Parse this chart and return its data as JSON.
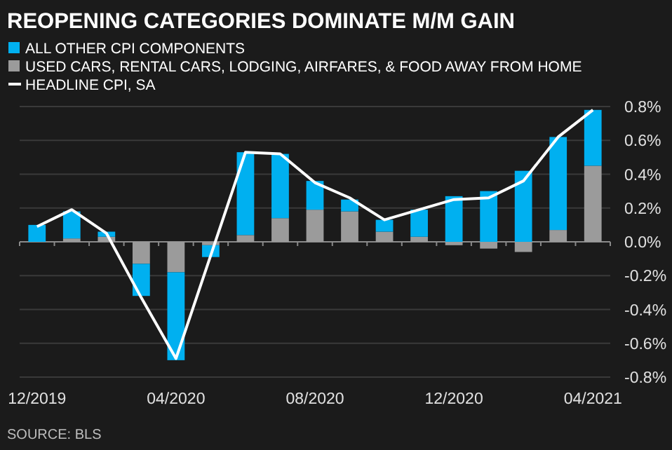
{
  "chart_data": {
    "type": "bar",
    "title": "REOPENING CATEGORIES DOMINATE M/M GAIN",
    "stacked": true,
    "categories": [
      "12/2019",
      null,
      null,
      null,
      "04/2020",
      null,
      null,
      null,
      "08/2020",
      null,
      null,
      null,
      "12/2020",
      null,
      null,
      null,
      "04/2021"
    ],
    "series": [
      {
        "name": "USED CARS, RENTAL CARS, LODGING, AIRFARES, & FOOD AWAY FROM HOME",
        "color": "#9b9b9b",
        "values": [
          0,
          0.02,
          0.03,
          -0.13,
          -0.18,
          -0.02,
          0.04,
          0.14,
          0.19,
          0.18,
          0.06,
          0.03,
          -0.02,
          -0.04,
          -0.06,
          0.07,
          0.45
        ]
      },
      {
        "name": "ALL OTHER CPI COMPONENTS",
        "color": "#00b0f0",
        "values": [
          0.1,
          0.16,
          0.03,
          -0.19,
          -0.52,
          -0.07,
          0.49,
          0.38,
          0.17,
          0.07,
          0.07,
          0.16,
          0.27,
          0.3,
          0.42,
          0.55,
          0.33
        ]
      },
      {
        "name": "HEADLINE CPI, SA",
        "type": "line",
        "color": "#ffffff",
        "values": [
          0.09,
          0.19,
          0.05,
          -0.33,
          -0.69,
          -0.08,
          0.53,
          0.52,
          0.35,
          0.26,
          0.13,
          0.19,
          0.25,
          0.26,
          0.36,
          0.62,
          0.78
        ]
      }
    ],
    "ylim": [
      -0.8,
      0.8
    ],
    "yticks": [
      {
        "value": -0.8,
        "label": "-0.8%"
      },
      {
        "value": -0.6,
        "label": "-0.6%"
      },
      {
        "value": -0.4,
        "label": "-0.4%"
      },
      {
        "value": -0.2,
        "label": "-0.2%"
      },
      {
        "value": 0,
        "label": "0.0%"
      },
      {
        "value": 0.2,
        "label": "0.2%"
      },
      {
        "value": 0.4,
        "label": "0.4%"
      },
      {
        "value": 0.6,
        "label": "0.6%"
      },
      {
        "value": 0.8,
        "label": "0.8%"
      }
    ],
    "grid": "y",
    "legend": "top left",
    "marker": "none",
    "annotations": [
      "SOURCE: BLS"
    ]
  }
}
